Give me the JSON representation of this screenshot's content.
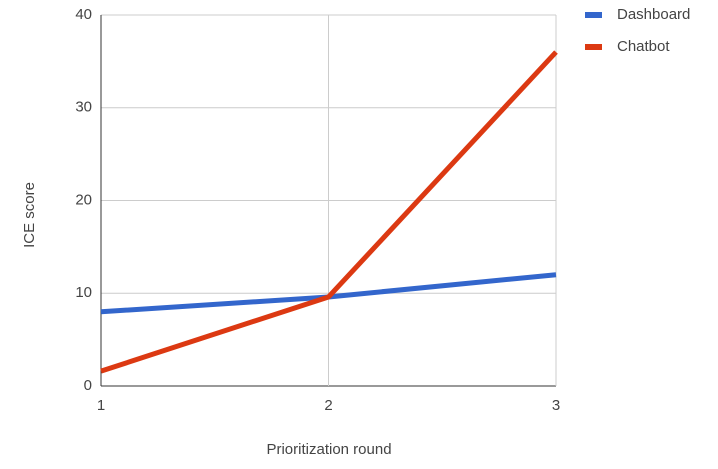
{
  "chart_data": {
    "type": "line",
    "x_label": "Prioritization round",
    "y_label": "ICE score",
    "x": [
      1,
      2,
      3
    ],
    "series": [
      {
        "name": "Dashboard",
        "color": "#3366cc",
        "values": [
          8,
          9.6,
          12
        ]
      },
      {
        "name": "Chatbot",
        "color": "#dc3912",
        "values": [
          1.6,
          9.6,
          36
        ]
      }
    ],
    "xlim": [
      1,
      3
    ],
    "xticks": [
      1,
      2,
      3
    ],
    "ylim": [
      0,
      40
    ],
    "yticks": [
      0,
      10,
      20,
      30,
      40
    ],
    "grid": true,
    "legend": "right"
  }
}
